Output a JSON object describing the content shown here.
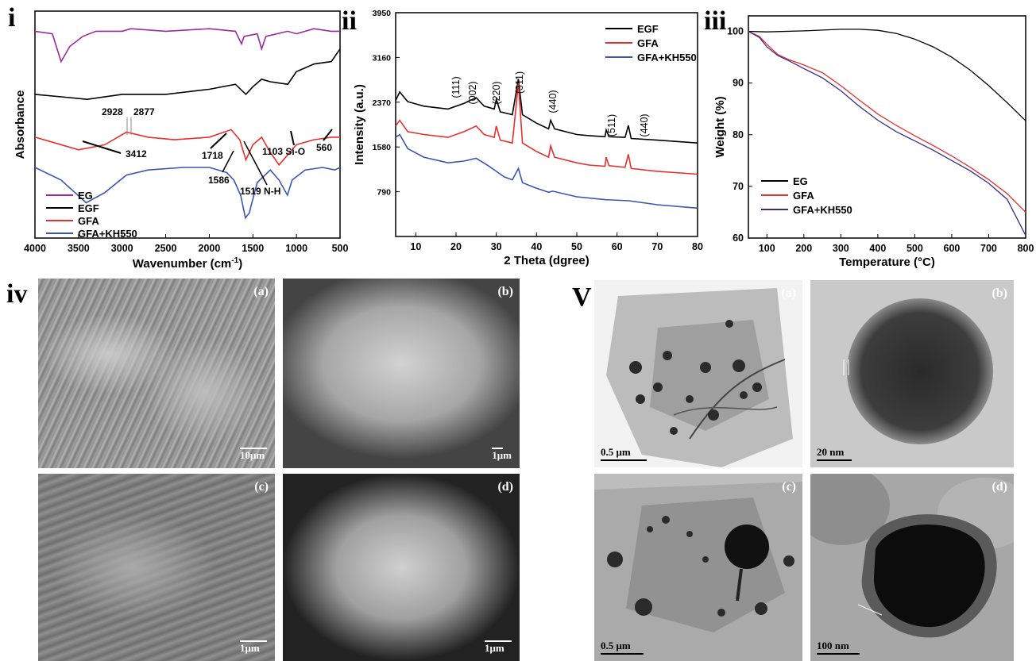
{
  "panels": {
    "i": "i",
    "ii": "ii",
    "iii": "iii",
    "iv": "iv",
    "v": "V"
  },
  "colors": {
    "purple": "#9b2b9b",
    "black": "#000000",
    "red": "#e53030",
    "blue": "#3a55b4"
  },
  "chart_data": [
    {
      "type": "line",
      "panel": "i",
      "xlabel": "Wavenumber (cm-1)",
      "xlabel_main": "Wavenumber (cm",
      "xlabel_sup": "-1",
      "xlabel_close": ")",
      "ylabel": "Absorbance",
      "xlim": [
        4000,
        500
      ],
      "x_reversed": true,
      "x_ticks": [
        4000,
        3500,
        3000,
        2500,
        2000,
        1500,
        1000,
        500
      ],
      "series": [
        {
          "name": "EG",
          "color": "#9b2b9b",
          "points": [
            [
              4000,
              0.92
            ],
            [
              3800,
              0.91
            ],
            [
              3700,
              0.8
            ],
            [
              3600,
              0.86
            ],
            [
              3450,
              0.9
            ],
            [
              3300,
              0.92
            ],
            [
              3000,
              0.92
            ],
            [
              2900,
              0.93
            ],
            [
              2500,
              0.92
            ],
            [
              2000,
              0.93
            ],
            [
              1700,
              0.92
            ],
            [
              1630,
              0.87
            ],
            [
              1600,
              0.9
            ],
            [
              1450,
              0.91
            ],
            [
              1400,
              0.85
            ],
            [
              1350,
              0.9
            ],
            [
              1100,
              0.92
            ],
            [
              1000,
              0.91
            ],
            [
              800,
              0.93
            ],
            [
              600,
              0.92
            ],
            [
              500,
              0.92
            ]
          ]
        },
        {
          "name": "EGF",
          "color": "#000000",
          "points": [
            [
              4000,
              0.67
            ],
            [
              3700,
              0.66
            ],
            [
              3400,
              0.65
            ],
            [
              3000,
              0.67
            ],
            [
              2500,
              0.67
            ],
            [
              2000,
              0.69
            ],
            [
              1700,
              0.71
            ],
            [
              1580,
              0.67
            ],
            [
              1500,
              0.7
            ],
            [
              1400,
              0.73
            ],
            [
              1300,
              0.72
            ],
            [
              1100,
              0.71
            ],
            [
              1000,
              0.76
            ],
            [
              800,
              0.79
            ],
            [
              600,
              0.8
            ],
            [
              500,
              0.85
            ]
          ]
        },
        {
          "name": "GFA",
          "color": "#e53030",
          "points": [
            [
              4000,
              0.5
            ],
            [
              3800,
              0.48
            ],
            [
              3500,
              0.45
            ],
            [
              3200,
              0.47
            ],
            [
              2950,
              0.52
            ],
            [
              2700,
              0.5
            ],
            [
              2400,
              0.49
            ],
            [
              2000,
              0.5
            ],
            [
              1750,
              0.53
            ],
            [
              1650,
              0.49
            ],
            [
              1580,
              0.41
            ],
            [
              1500,
              0.47
            ],
            [
              1400,
              0.5
            ],
            [
              1300,
              0.44
            ],
            [
              1200,
              0.39
            ],
            [
              1100,
              0.43
            ],
            [
              1000,
              0.47
            ],
            [
              800,
              0.49
            ],
            [
              600,
              0.5
            ],
            [
              500,
              0.5
            ]
          ]
        },
        {
          "name": "GFA+KH550",
          "color": "#3a55b4",
          "points": [
            [
              4000,
              0.38
            ],
            [
              3700,
              0.33
            ],
            [
              3412,
              0.24
            ],
            [
              3200,
              0.28
            ],
            [
              2950,
              0.35
            ],
            [
              2700,
              0.37
            ],
            [
              2300,
              0.38
            ],
            [
              2000,
              0.38
            ],
            [
              1800,
              0.36
            ],
            [
              1718,
              0.33
            ],
            [
              1640,
              0.27
            ],
            [
              1586,
              0.18
            ],
            [
              1540,
              0.2
            ],
            [
              1519,
              0.23
            ],
            [
              1450,
              0.32
            ],
            [
              1300,
              0.37
            ],
            [
              1200,
              0.33
            ],
            [
              1103,
              0.27
            ],
            [
              1050,
              0.33
            ],
            [
              900,
              0.37
            ],
            [
              700,
              0.38
            ],
            [
              560,
              0.37
            ],
            [
              500,
              0.38
            ]
          ]
        }
      ],
      "annotations": [
        "2928",
        "2877",
        "3412",
        "1718",
        "1586",
        "1519 N-H",
        "1103 Si-O",
        "560"
      ],
      "legend": [
        "EG",
        "EGF",
        "GFA",
        "GFA+KH550"
      ],
      "legend_position": "bottom-left"
    },
    {
      "type": "line",
      "panel": "ii",
      "xlabel": "2 Theta (dgree)",
      "ylabel": "Intensity (a.u.)",
      "xlim": [
        5,
        80
      ],
      "ylim": [
        0,
        3950
      ],
      "x_ticks": [
        10,
        20,
        30,
        40,
        50,
        60,
        70,
        80
      ],
      "y_ticks": [
        790,
        1580,
        2370,
        3160,
        3950
      ],
      "series": [
        {
          "name": "EGF",
          "color": "#000000",
          "points": [
            [
              5,
              2400
            ],
            [
              6,
              2550
            ],
            [
              8,
              2380
            ],
            [
              12,
              2300
            ],
            [
              18,
              2250
            ],
            [
              22,
              2350
            ],
            [
              25,
              2450
            ],
            [
              27,
              2300
            ],
            [
              29.5,
              2250
            ],
            [
              30,
              2420
            ],
            [
              31,
              2200
            ],
            [
              34,
              2150
            ],
            [
              35.5,
              2780
            ],
            [
              36.5,
              2150
            ],
            [
              40,
              2000
            ],
            [
              43,
              1900
            ],
            [
              43.5,
              2050
            ],
            [
              44.5,
              1900
            ],
            [
              50,
              1800
            ],
            [
              53,
              1780
            ],
            [
              57,
              1760
            ],
            [
              57.3,
              1880
            ],
            [
              58,
              1760
            ],
            [
              62,
              1750
            ],
            [
              62.8,
              1960
            ],
            [
              63.5,
              1730
            ],
            [
              70,
              1700
            ],
            [
              80,
              1650
            ]
          ]
        },
        {
          "name": "GFA",
          "color": "#e53030",
          "points": [
            [
              5,
              1950
            ],
            [
              6,
              2050
            ],
            [
              8,
              1850
            ],
            [
              12,
              1800
            ],
            [
              18,
              1750
            ],
            [
              22,
              1850
            ],
            [
              25,
              1950
            ],
            [
              27,
              1800
            ],
            [
              29.5,
              1750
            ],
            [
              30,
              1950
            ],
            [
              31,
              1700
            ],
            [
              34,
              1650
            ],
            [
              35.5,
              2700
            ],
            [
              36.5,
              1650
            ],
            [
              40,
              1500
            ],
            [
              43,
              1400
            ],
            [
              43.5,
              1600
            ],
            [
              44.5,
              1400
            ],
            [
              50,
              1300
            ],
            [
              53,
              1260
            ],
            [
              57,
              1240
            ],
            [
              57.3,
              1400
            ],
            [
              58,
              1250
            ],
            [
              62,
              1220
            ],
            [
              62.8,
              1450
            ],
            [
              63.5,
              1200
            ],
            [
              70,
              1150
            ],
            [
              80,
              1100
            ]
          ]
        },
        {
          "name": "GFA+KH550",
          "color": "#3a55b4",
          "points": [
            [
              5,
              1750
            ],
            [
              6,
              1800
            ],
            [
              8,
              1550
            ],
            [
              12,
              1400
            ],
            [
              18,
              1300
            ],
            [
              22,
              1330
            ],
            [
              25,
              1380
            ],
            [
              28,
              1250
            ],
            [
              30,
              1150
            ],
            [
              32,
              1050
            ],
            [
              34,
              1000
            ],
            [
              35.5,
              1200
            ],
            [
              36.5,
              950
            ],
            [
              40,
              850
            ],
            [
              43,
              780
            ],
            [
              44,
              800
            ],
            [
              50,
              700
            ],
            [
              57,
              650
            ],
            [
              63,
              630
            ],
            [
              70,
              560
            ],
            [
              80,
              500
            ]
          ]
        }
      ],
      "peak_labels": [
        "(111)",
        "(002)",
        "(220)",
        "(311)",
        "(440)",
        "(511)",
        "(440)"
      ],
      "legend": [
        "EGF",
        "GFA",
        "GFA+KH550"
      ],
      "legend_position": "top-right"
    },
    {
      "type": "line",
      "panel": "iii",
      "xlabel": "Temperature (°C)",
      "ylabel": "Weight (%)",
      "xlim": [
        50,
        800
      ],
      "ylim": [
        60,
        103
      ],
      "x_ticks": [
        100,
        200,
        300,
        400,
        500,
        600,
        700,
        800
      ],
      "y_ticks": [
        60,
        70,
        80,
        90,
        100
      ],
      "series": [
        {
          "name": "EG",
          "color": "#000000",
          "points": [
            [
              50,
              100
            ],
            [
              100,
              99.9
            ],
            [
              200,
              100.1
            ],
            [
              300,
              100.4
            ],
            [
              350,
              100.4
            ],
            [
              400,
              100.2
            ],
            [
              450,
              99.6
            ],
            [
              500,
              98.5
            ],
            [
              550,
              97
            ],
            [
              600,
              95
            ],
            [
              650,
              92.5
            ],
            [
              700,
              89.5
            ],
            [
              750,
              86.2
            ],
            [
              800,
              82.7
            ]
          ]
        },
        {
          "name": "GFA",
          "color": "#e53030",
          "points": [
            [
              50,
              100
            ],
            [
              80,
              99
            ],
            [
              100,
              97.5
            ],
            [
              130,
              95.5
            ],
            [
              160,
              94.5
            ],
            [
              200,
              93.5
            ],
            [
              250,
              92
            ],
            [
              300,
              89.5
            ],
            [
              350,
              86.7
            ],
            [
              400,
              84
            ],
            [
              450,
              81.8
            ],
            [
              500,
              79.8
            ],
            [
              550,
              77.9
            ],
            [
              600,
              75.9
            ],
            [
              650,
              73.7
            ],
            [
              700,
              71.3
            ],
            [
              750,
              68.6
            ],
            [
              800,
              65
            ]
          ]
        },
        {
          "name": "GFA+KH550",
          "color": "#3a2b8a",
          "points": [
            [
              50,
              100
            ],
            [
              80,
              98.8
            ],
            [
              100,
              97
            ],
            [
              130,
              95.3
            ],
            [
              160,
              94.3
            ],
            [
              200,
              92.8
            ],
            [
              250,
              91
            ],
            [
              300,
              88.5
            ],
            [
              350,
              85.5
            ],
            [
              400,
              82.8
            ],
            [
              450,
              80.6
            ],
            [
              500,
              78.8
            ],
            [
              550,
              77
            ],
            [
              600,
              75
            ],
            [
              650,
              73
            ],
            [
              700,
              70.6
            ],
            [
              750,
              67.5
            ],
            [
              800,
              60.5
            ]
          ]
        }
      ],
      "legend": [
        "EG",
        "GFA",
        "GFA+KH550"
      ],
      "legend_position": "bottom-left"
    }
  ],
  "sem": [
    {
      "tag": "(a)",
      "scale": "10μm"
    },
    {
      "tag": "(b)",
      "scale": "1μm"
    },
    {
      "tag": "(c)",
      "scale": "1μm"
    },
    {
      "tag": "(d)",
      "scale": "1μm"
    }
  ],
  "tem": [
    {
      "tag": "(a)",
      "scale": "0.5 μm"
    },
    {
      "tag": "(b)",
      "scale": "20 nm"
    },
    {
      "tag": "(c)",
      "scale": "0.5 μm"
    },
    {
      "tag": "(d)",
      "scale": "100 nm"
    }
  ]
}
